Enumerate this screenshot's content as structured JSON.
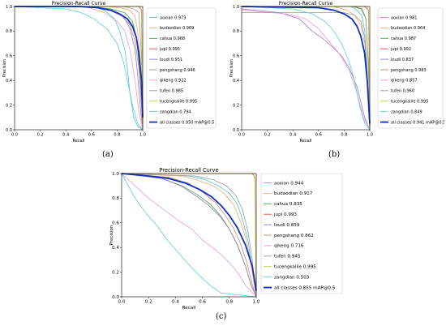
{
  "panels": [
    {
      "label": "(a)"
    },
    {
      "label": "(b)"
    },
    {
      "label": "(c)"
    }
  ],
  "chart_data": [
    {
      "type": "line",
      "title": "Precision-Recall Curve",
      "xlabel": "Recall",
      "ylabel": "Precision",
      "xlim": [
        0,
        1
      ],
      "ylim": [
        0,
        1
      ],
      "xticks": [
        "0.0",
        "0.2",
        "0.4",
        "0.6",
        "0.8",
        "1.0"
      ],
      "yticks": [
        "0.0",
        "0.2",
        "0.4",
        "0.6",
        "0.8",
        "1.0"
      ],
      "legend_position": "right",
      "series": [
        {
          "name": "aoxian 0.973",
          "color": "#4fc3d6",
          "x": [
            0,
            0.6,
            0.7,
            0.78,
            0.82,
            0.86,
            0.88,
            0.9,
            0.93,
            0.96,
            1.0
          ],
          "y": [
            1,
            1,
            0.97,
            0.9,
            0.8,
            0.65,
            0.5,
            0.3,
            0.1,
            0.03,
            0
          ]
        },
        {
          "name": "budaodian 0.969",
          "color": "#f2a968",
          "x": [
            0,
            0.72,
            0.82,
            0.9,
            0.94,
            0.96,
            0.98,
            0.99,
            1.0
          ],
          "y": [
            1,
            1,
            0.99,
            0.97,
            0.92,
            0.8,
            0.6,
            0.25,
            0
          ]
        },
        {
          "name": "cahua 0.968",
          "color": "#3aa64a",
          "x": [
            0,
            0.6,
            0.75,
            0.86,
            0.92,
            0.95,
            0.97,
            0.99,
            1.0
          ],
          "y": [
            1,
            1,
            0.98,
            0.95,
            0.88,
            0.75,
            0.55,
            0.2,
            0
          ]
        },
        {
          "name": "jupi 0.995",
          "color": "#e84a4a",
          "x": [
            0,
            0.97,
            0.99,
            1.0
          ],
          "y": [
            1,
            1,
            0.97,
            0
          ]
        },
        {
          "name": "loudi 0.951",
          "color": "#9c7ac6",
          "x": [
            0,
            0.62,
            0.76,
            0.85,
            0.9,
            0.94,
            0.96,
            0.98,
            1.0
          ],
          "y": [
            1,
            1,
            0.97,
            0.92,
            0.82,
            0.65,
            0.45,
            0.2,
            0
          ]
        },
        {
          "name": "pengshang 0.946",
          "color": "#c48a7a",
          "x": [
            0,
            0.58,
            0.74,
            0.84,
            0.9,
            0.94,
            0.97,
            0.99,
            1.0
          ],
          "y": [
            1,
            1,
            0.97,
            0.92,
            0.85,
            0.72,
            0.5,
            0.2,
            0
          ]
        },
        {
          "name": "qikeng 0.922",
          "color": "#e89bd0",
          "x": [
            0,
            0.55,
            0.7,
            0.8,
            0.86,
            0.9,
            0.94,
            0.97,
            1.0
          ],
          "y": [
            1,
            1,
            0.95,
            0.88,
            0.8,
            0.65,
            0.4,
            0.15,
            0
          ]
        },
        {
          "name": "tufen 0.985",
          "color": "#9a9a9a",
          "x": [
            0,
            0.85,
            0.93,
            0.97,
            0.99,
            1.0
          ],
          "y": [
            1,
            1,
            0.98,
            0.95,
            0.6,
            0
          ]
        },
        {
          "name": "tucengkaiile 0.995",
          "color": "#c8c83a",
          "x": [
            0,
            0.98,
            0.99,
            1.0
          ],
          "y": [
            1,
            1,
            0.95,
            0
          ]
        },
        {
          "name": "zangdian 0.794",
          "color": "#5bcbe0",
          "x": [
            0,
            0.4,
            0.52,
            0.62,
            0.72,
            0.8,
            0.85,
            0.88,
            0.92,
            0.96,
            1.0
          ],
          "y": [
            1,
            0.98,
            0.95,
            0.9,
            0.82,
            0.7,
            0.55,
            0.4,
            0.2,
            0.05,
            0
          ]
        },
        {
          "name": "all classes 0.950 mAP@0.5",
          "color": "#1030c0",
          "bold": true,
          "x": [
            0,
            0.5,
            0.65,
            0.75,
            0.82,
            0.88,
            0.92,
            0.95,
            0.97,
            0.99,
            1.0
          ],
          "y": [
            1,
            1,
            0.99,
            0.97,
            0.94,
            0.9,
            0.84,
            0.75,
            0.62,
            0.4,
            0.1
          ]
        }
      ]
    },
    {
      "type": "line",
      "title": "Precision-Recall Curve",
      "xlabel": "Recall",
      "ylabel": "Precision",
      "xlim": [
        0,
        1
      ],
      "ylim": [
        0,
        1
      ],
      "xticks": [
        "0.0",
        "0.2",
        "0.4",
        "0.6",
        "0.8",
        "1.0"
      ],
      "yticks": [
        "0.0",
        "0.2",
        "0.4",
        "0.6",
        "0.8",
        "1.0"
      ],
      "legend_position": "right",
      "series": [
        {
          "name": "aoxian 0.981",
          "color": "#4fc3d6",
          "x": [
            0,
            0.85,
            0.9,
            0.94,
            0.96,
            0.98,
            0.99,
            1.0
          ],
          "y": [
            1,
            1,
            0.97,
            0.92,
            0.8,
            0.5,
            0.2,
            0
          ]
        },
        {
          "name": "budaodian 0.964",
          "color": "#f2a968",
          "x": [
            0,
            0.72,
            0.82,
            0.88,
            0.93,
            0.96,
            0.98,
            1.0
          ],
          "y": [
            1,
            1,
            0.97,
            0.93,
            0.85,
            0.7,
            0.4,
            0
          ]
        },
        {
          "name": "cahua 0.987",
          "color": "#3aa64a",
          "x": [
            0,
            0.88,
            0.94,
            0.97,
            0.99,
            1.0
          ],
          "y": [
            1,
            1,
            0.98,
            0.9,
            0.5,
            0
          ]
        },
        {
          "name": "jupi 0.992",
          "color": "#e84a4a",
          "x": [
            0,
            0.96,
            0.99,
            1.0
          ],
          "y": [
            1,
            1,
            0.97,
            0
          ]
        },
        {
          "name": "loudi 0.837",
          "color": "#9c7ac6",
          "x": [
            0,
            0.3,
            0.45,
            0.55,
            0.62,
            0.7,
            0.78,
            0.84,
            0.9,
            0.96,
            1.0
          ],
          "y": [
            0.98,
            0.95,
            0.9,
            0.8,
            0.75,
            0.68,
            0.6,
            0.5,
            0.35,
            0.1,
            0
          ]
        },
        {
          "name": "pengshang 0.983",
          "color": "#c48a7a",
          "x": [
            0,
            0.86,
            0.93,
            0.97,
            0.99,
            1.0
          ],
          "y": [
            1,
            1,
            0.98,
            0.9,
            0.5,
            0
          ]
        },
        {
          "name": "qikeng 0.857",
          "color": "#e89bd0",
          "x": [
            0,
            0.35,
            0.5,
            0.6,
            0.68,
            0.76,
            0.84,
            0.9,
            0.95,
            1.0
          ],
          "y": [
            0.97,
            0.94,
            0.9,
            0.82,
            0.72,
            0.62,
            0.48,
            0.3,
            0.1,
            0
          ]
        },
        {
          "name": "tufen 0.960",
          "color": "#9a9a9a",
          "x": [
            0,
            0.8,
            0.88,
            0.93,
            0.96,
            0.98,
            1.0
          ],
          "y": [
            0.95,
            0.95,
            0.93,
            0.88,
            0.75,
            0.45,
            0
          ]
        },
        {
          "name": "tucengkaiile 0.995",
          "color": "#c8c83a",
          "x": [
            0,
            0.98,
            0.99,
            1.0
          ],
          "y": [
            1,
            1,
            0.95,
            0
          ]
        },
        {
          "name": "zangdian 0.849",
          "color": "#5bcbe0",
          "x": [
            0,
            0.4,
            0.55,
            0.65,
            0.72,
            0.78,
            0.84,
            0.88,
            0.92,
            0.96,
            1.0
          ],
          "y": [
            1,
            0.98,
            0.94,
            0.88,
            0.8,
            0.7,
            0.55,
            0.4,
            0.2,
            0.05,
            0
          ]
        },
        {
          "name": "all classes 0.941 mAP@0.5",
          "color": "#1030c0",
          "bold": true,
          "x": [
            0,
            0.6,
            0.72,
            0.8,
            0.86,
            0.9,
            0.93,
            0.96,
            0.98,
            1.0
          ],
          "y": [
            1,
            0.99,
            0.97,
            0.94,
            0.9,
            0.84,
            0.76,
            0.62,
            0.4,
            0.05
          ]
        }
      ]
    },
    {
      "type": "line",
      "title": "Precision-Recall Curve",
      "xlabel": "Recall",
      "ylabel": "Precision",
      "xlim": [
        0,
        1
      ],
      "ylim": [
        0,
        1
      ],
      "xticks": [
        "0.0",
        "0.2",
        "0.4",
        "0.6",
        "0.8",
        "1.0"
      ],
      "yticks": [
        "0.0",
        "0.2",
        "0.4",
        "0.6",
        "0.8",
        "1.0"
      ],
      "legend_position": "right",
      "series": [
        {
          "name": "aoxian 0.944",
          "color": "#4fc3d6",
          "x": [
            0,
            0.5,
            0.62,
            0.72,
            0.8,
            0.86,
            0.9,
            0.94,
            0.97,
            1.0
          ],
          "y": [
            1,
            0.98,
            0.95,
            0.9,
            0.84,
            0.75,
            0.62,
            0.45,
            0.2,
            0
          ]
        },
        {
          "name": "budaodian 0.917",
          "color": "#f2a968",
          "x": [
            0,
            0.45,
            0.58,
            0.68,
            0.76,
            0.83,
            0.88,
            0.93,
            0.97,
            1.0
          ],
          "y": [
            1,
            0.98,
            0.94,
            0.9,
            0.84,
            0.75,
            0.62,
            0.45,
            0.2,
            0
          ]
        },
        {
          "name": "cahua 0.835",
          "color": "#3aa64a",
          "x": [
            0,
            0.3,
            0.45,
            0.56,
            0.66,
            0.74,
            0.8,
            0.86,
            0.92,
            0.96,
            1.0
          ],
          "y": [
            1,
            0.96,
            0.9,
            0.83,
            0.75,
            0.65,
            0.55,
            0.42,
            0.25,
            0.1,
            0
          ]
        },
        {
          "name": "jupi 0.993",
          "color": "#e84a4a",
          "x": [
            0,
            0.97,
            0.99,
            1.0
          ],
          "y": [
            1,
            1,
            0.97,
            0
          ]
        },
        {
          "name": "loudi 0.839",
          "color": "#9c7ac6",
          "x": [
            0,
            0.3,
            0.44,
            0.55,
            0.65,
            0.74,
            0.8,
            0.86,
            0.92,
            0.96,
            1.0
          ],
          "y": [
            1,
            0.96,
            0.9,
            0.82,
            0.74,
            0.64,
            0.55,
            0.42,
            0.25,
            0.1,
            0
          ]
        },
        {
          "name": "pengshang 0.862",
          "color": "#c48a7a",
          "x": [
            0,
            0.35,
            0.5,
            0.6,
            0.7,
            0.77,
            0.83,
            0.88,
            0.93,
            0.97,
            1.0
          ],
          "y": [
            1,
            0.97,
            0.92,
            0.85,
            0.76,
            0.66,
            0.56,
            0.44,
            0.28,
            0.1,
            0
          ]
        },
        {
          "name": "qikeng 0.716",
          "color": "#e89bd0",
          "x": [
            0,
            0.1,
            0.2,
            0.3,
            0.42,
            0.52,
            0.6,
            0.7,
            0.78,
            0.86,
            0.93,
            1.0
          ],
          "y": [
            1,
            0.9,
            0.8,
            0.72,
            0.62,
            0.55,
            0.46,
            0.38,
            0.3,
            0.2,
            0.08,
            0
          ]
        },
        {
          "name": "tufen 0.945",
          "color": "#9a9a9a",
          "x": [
            0,
            0.55,
            0.68,
            0.78,
            0.85,
            0.9,
            0.94,
            0.97,
            1.0
          ],
          "y": [
            1,
            0.98,
            0.95,
            0.9,
            0.82,
            0.7,
            0.52,
            0.3,
            0
          ]
        },
        {
          "name": "tucengkaiile 0.995",
          "color": "#c8c83a",
          "x": [
            0,
            0.98,
            0.99,
            1.0
          ],
          "y": [
            1,
            1,
            0.95,
            0
          ]
        },
        {
          "name": "zangdian 0.503",
          "color": "#5bcbe0",
          "x": [
            0,
            0.05,
            0.1,
            0.18,
            0.26,
            0.34,
            0.42,
            0.5,
            0.58,
            0.66,
            0.74,
            1.0
          ],
          "y": [
            1,
            0.9,
            0.8,
            0.68,
            0.58,
            0.46,
            0.36,
            0.26,
            0.17,
            0.09,
            0.03,
            0
          ]
        },
        {
          "name": "all classes 0.855 mAP@0.5",
          "color": "#1030c0",
          "bold": true,
          "x": [
            0,
            0.2,
            0.35,
            0.48,
            0.58,
            0.67,
            0.74,
            0.8,
            0.86,
            0.92,
            0.97,
            1.0
          ],
          "y": [
            1,
            0.98,
            0.96,
            0.92,
            0.87,
            0.81,
            0.74,
            0.66,
            0.56,
            0.42,
            0.25,
            0.05
          ]
        }
      ]
    }
  ]
}
